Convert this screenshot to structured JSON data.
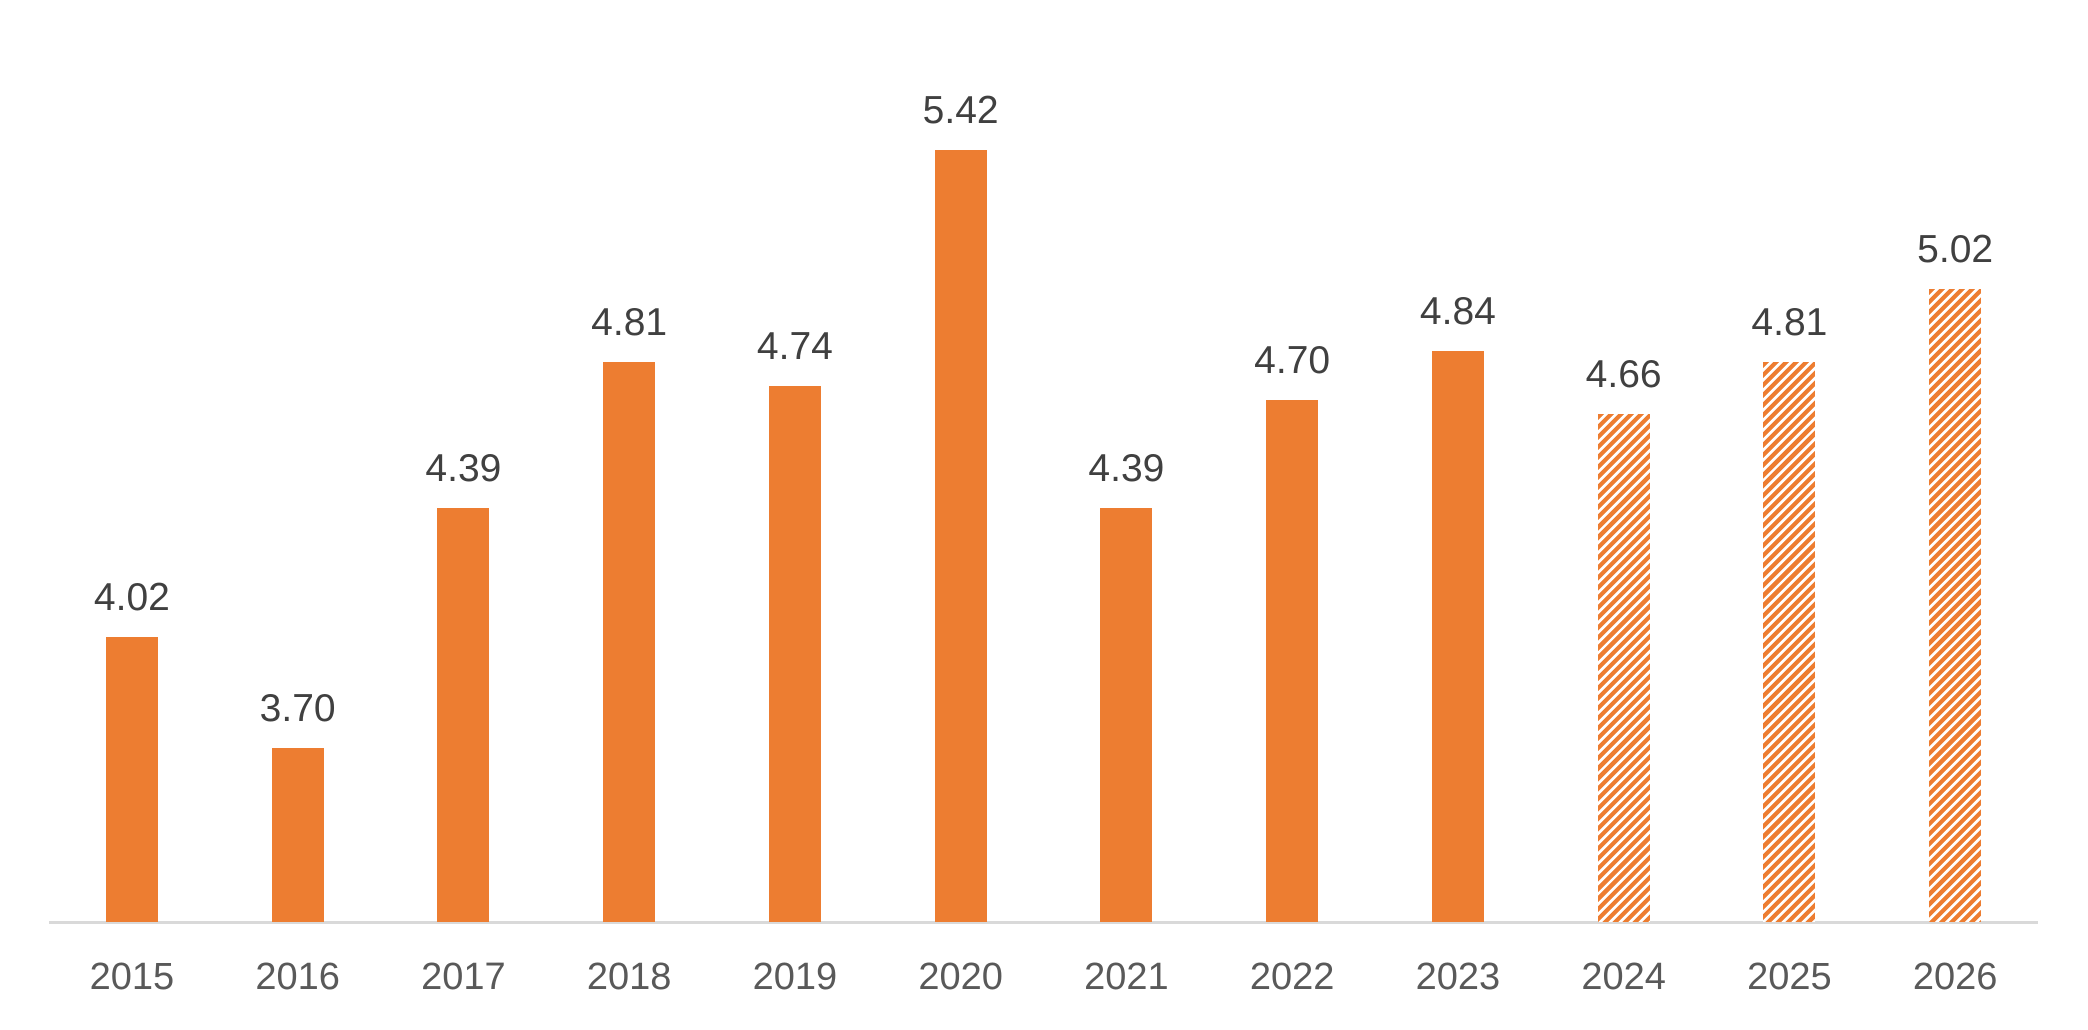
{
  "chart_data": {
    "type": "bar",
    "title": "",
    "xlabel": "",
    "ylabel": "",
    "categories": [
      "2015",
      "2016",
      "2017",
      "2018",
      "2019",
      "2020",
      "2021",
      "2022",
      "2023",
      "2024",
      "2025",
      "2026"
    ],
    "values": [
      4.02,
      3.7,
      4.39,
      4.81,
      4.74,
      5.42,
      4.39,
      4.7,
      4.84,
      4.66,
      4.81,
      5.02
    ],
    "value_labels": [
      "4.02",
      "3.70",
      "4.39",
      "4.81",
      "4.74",
      "5.42",
      "4.39",
      "4.70",
      "4.84",
      "4.66",
      "4.81",
      "5.02"
    ],
    "forecast_start_index": 9,
    "forecast_style": "diagonal-hatch",
    "ylim": [
      3.2,
      5.85
    ],
    "grid": false,
    "legend": "none",
    "colors": {
      "bar": "#ED7D31",
      "hatch_background": "#FFFFFF",
      "data_label": "#404040",
      "tick_label": "#595959",
      "axis_line": "#D9D9D9",
      "background": "#FFFFFF"
    }
  }
}
